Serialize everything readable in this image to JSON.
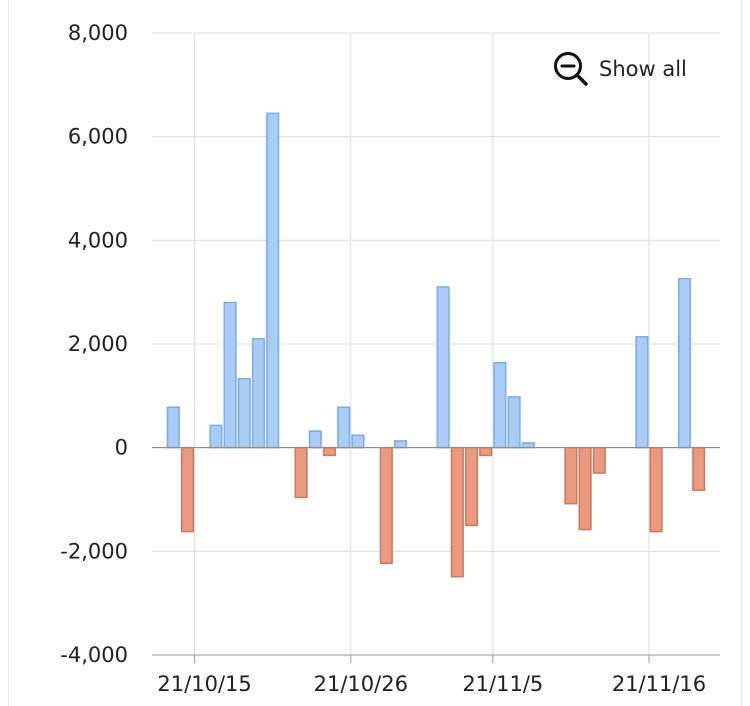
{
  "chart_data": {
    "type": "bar",
    "y_ticks": [
      "8,000",
      "6,000",
      "4,000",
      "2,000",
      "0",
      "-2,000",
      "-4,000"
    ],
    "y_tick_values": [
      8000,
      6000,
      4000,
      2000,
      0,
      -2000,
      -4000
    ],
    "x_ticks": [
      {
        "label": "21/10/15",
        "date": "2021-10-15"
      },
      {
        "label": "21/10/26",
        "date": "2021-10-26"
      },
      {
        "label": "21/11/5",
        "date": "2021-11-05"
      },
      {
        "label": "21/11/16",
        "date": "2021-11-16"
      }
    ],
    "ylim": [
      -4000,
      8000
    ],
    "xlim": [
      "2021-10-12",
      "2021-11-21"
    ],
    "grid": true,
    "colors": {
      "positive": "#a9cbf5",
      "positive_edge": "#7aaee0",
      "negative": "#ea9a80",
      "negative_edge": "#c87a62"
    },
    "values": [
      {
        "date": "2021-10-13",
        "value": 780
      },
      {
        "date": "2021-10-14",
        "value": -1620
      },
      {
        "date": "2021-10-16",
        "value": 430
      },
      {
        "date": "2021-10-17",
        "value": 2800
      },
      {
        "date": "2021-10-18",
        "value": 1330
      },
      {
        "date": "2021-10-19",
        "value": 2100
      },
      {
        "date": "2021-10-20",
        "value": 6450
      },
      {
        "date": "2021-10-22",
        "value": -960
      },
      {
        "date": "2021-10-23",
        "value": 320
      },
      {
        "date": "2021-10-24",
        "value": -150
      },
      {
        "date": "2021-10-25",
        "value": 780
      },
      {
        "date": "2021-10-26",
        "value": 240
      },
      {
        "date": "2021-10-28",
        "value": -2230
      },
      {
        "date": "2021-10-29",
        "value": 130
      },
      {
        "date": "2021-11-01",
        "value": 3100
      },
      {
        "date": "2021-11-02",
        "value": -2490
      },
      {
        "date": "2021-11-03",
        "value": -1500
      },
      {
        "date": "2021-11-04",
        "value": -150
      },
      {
        "date": "2021-11-05",
        "value": 1640
      },
      {
        "date": "2021-11-06",
        "value": 980
      },
      {
        "date": "2021-11-07",
        "value": 90
      },
      {
        "date": "2021-11-10",
        "value": -1080
      },
      {
        "date": "2021-11-11",
        "value": -1580
      },
      {
        "date": "2021-11-12",
        "value": -490
      },
      {
        "date": "2021-11-15",
        "value": 2140
      },
      {
        "date": "2021-11-16",
        "value": -1620
      },
      {
        "date": "2021-11-18",
        "value": 3260
      },
      {
        "date": "2021-11-19",
        "value": -820
      }
    ]
  },
  "controls": {
    "show_all_label": "Show all",
    "show_all_icon": "zoom-out-icon"
  }
}
